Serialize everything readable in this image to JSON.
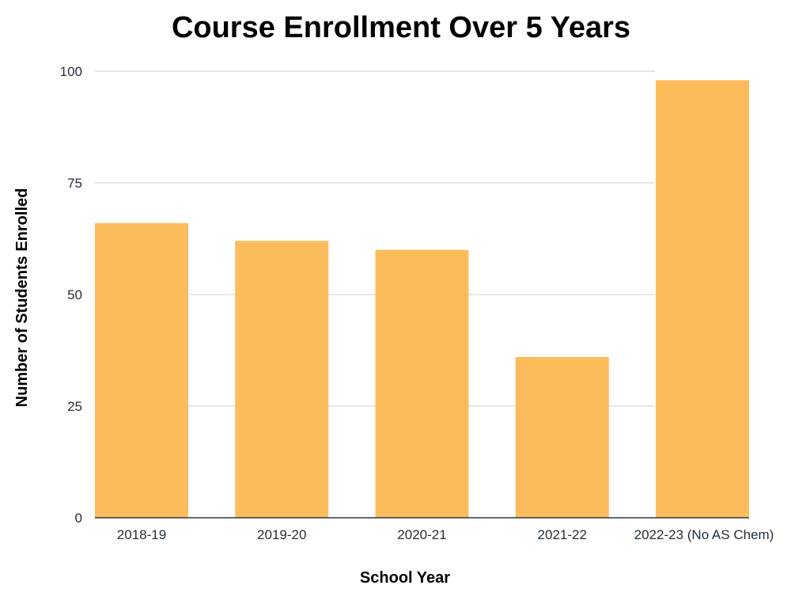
{
  "chart_data": {
    "type": "bar",
    "title": "Course Enrollment Over 5 Years",
    "xlabel": "School Year",
    "ylabel": "Number of Students Enrolled",
    "categories": [
      "2018-19",
      "2019-20",
      "2020-21",
      "2021-22",
      "2022-23 (No AS Chem)"
    ],
    "values": [
      66,
      62,
      60,
      36,
      98
    ],
    "ylim": [
      0,
      100
    ],
    "yticks": [
      0,
      25,
      50,
      75,
      100
    ],
    "grid": true,
    "bar_color": "#FDBC5B",
    "grid_color": "#cccccc"
  }
}
